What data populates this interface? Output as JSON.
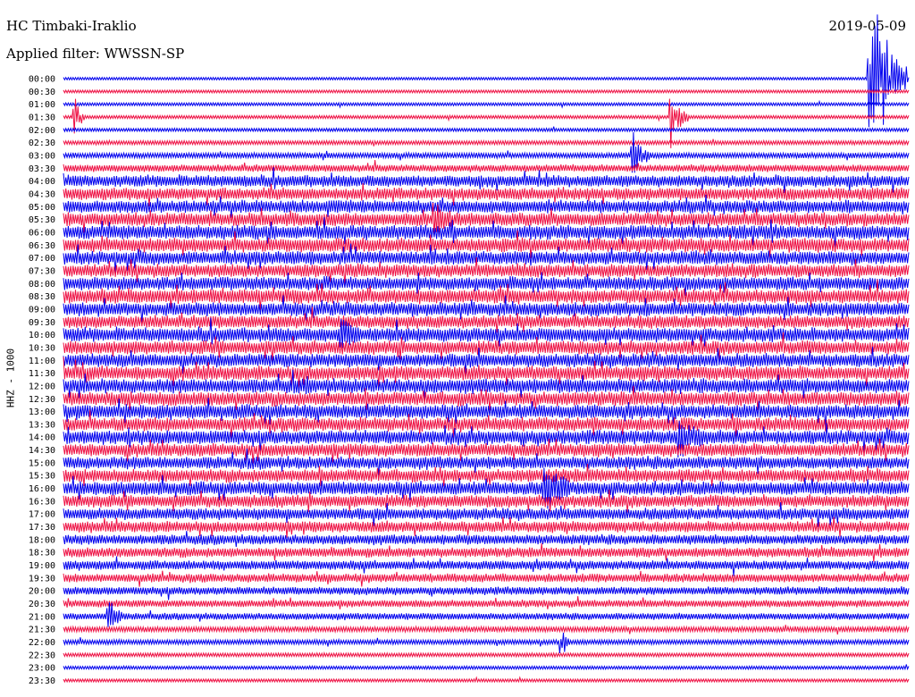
{
  "header": {
    "station": "HC Timbaki-Iraklio",
    "filter": "Applied filter: WWSSN-SP",
    "date": "2019-05-09",
    "channel": "HHZ - 1000"
  },
  "colors": {
    "trace_a": "#0000ee",
    "trace_b": "#ee1144",
    "text": "#000000"
  },
  "chart_data": {
    "type": "line",
    "title": "HC Timbaki-Iraklio",
    "subtitle": "Applied filter: WWSSN-SP",
    "date": "2019-05-09",
    "ylabel": "HHZ - 1000",
    "xlabel": "",
    "row_interval_minutes": 30,
    "rows": [
      "00:00",
      "00:30",
      "01:00",
      "01:30",
      "02:00",
      "02:30",
      "03:00",
      "03:30",
      "04:00",
      "04:30",
      "05:00",
      "05:30",
      "06:00",
      "06:30",
      "07:00",
      "07:30",
      "08:00",
      "08:30",
      "09:00",
      "09:30",
      "10:00",
      "10:30",
      "11:00",
      "11:30",
      "12:00",
      "12:30",
      "13:00",
      "13:30",
      "14:00",
      "14:30",
      "15:00",
      "15:30",
      "16:00",
      "16:30",
      "17:00",
      "17:30",
      "18:00",
      "18:30",
      "19:00",
      "19:30",
      "20:00",
      "20:30",
      "21:00",
      "21:30",
      "22:00",
      "22:30",
      "23:00",
      "23:30"
    ],
    "noise_level": [
      0.03,
      0.05,
      0.06,
      0.08,
      0.08,
      0.15,
      0.25,
      0.4,
      0.75,
      0.8,
      0.85,
      0.9,
      0.95,
      0.95,
      0.9,
      0.85,
      0.9,
      0.95,
      0.9,
      0.85,
      0.95,
      0.9,
      0.9,
      0.95,
      0.95,
      0.95,
      0.95,
      0.9,
      0.95,
      0.85,
      0.8,
      0.85,
      0.9,
      0.8,
      0.75,
      0.7,
      0.6,
      0.6,
      0.55,
      0.5,
      0.45,
      0.4,
      0.35,
      0.25,
      0.2,
      0.12,
      0.08,
      0.06
    ],
    "events": [
      {
        "row": "00:00",
        "time_frac": 0.955,
        "amp": 7.0,
        "dur_frac": 0.045
      },
      {
        "row": "01:30",
        "time_frac": 0.015,
        "amp": 1.5,
        "dur_frac": 0.01
      },
      {
        "row": "01:30",
        "time_frac": 0.72,
        "amp": 2.2,
        "dur_frac": 0.02
      },
      {
        "row": "03:00",
        "time_frac": 0.675,
        "amp": 2.0,
        "dur_frac": 0.02
      },
      {
        "row": "05:30",
        "time_frac": 0.44,
        "amp": 1.6,
        "dur_frac": 0.02
      },
      {
        "row": "10:00",
        "time_frac": 0.33,
        "amp": 1.5,
        "dur_frac": 0.02
      },
      {
        "row": "14:00",
        "time_frac": 0.73,
        "amp": 1.6,
        "dur_frac": 0.03
      },
      {
        "row": "16:00",
        "time_frac": 0.57,
        "amp": 2.0,
        "dur_frac": 0.03
      },
      {
        "row": "21:00",
        "time_frac": 0.055,
        "amp": 1.3,
        "dur_frac": 0.015
      },
      {
        "row": "22:00",
        "time_frac": 0.59,
        "amp": 1.1,
        "dur_frac": 0.01
      }
    ]
  }
}
